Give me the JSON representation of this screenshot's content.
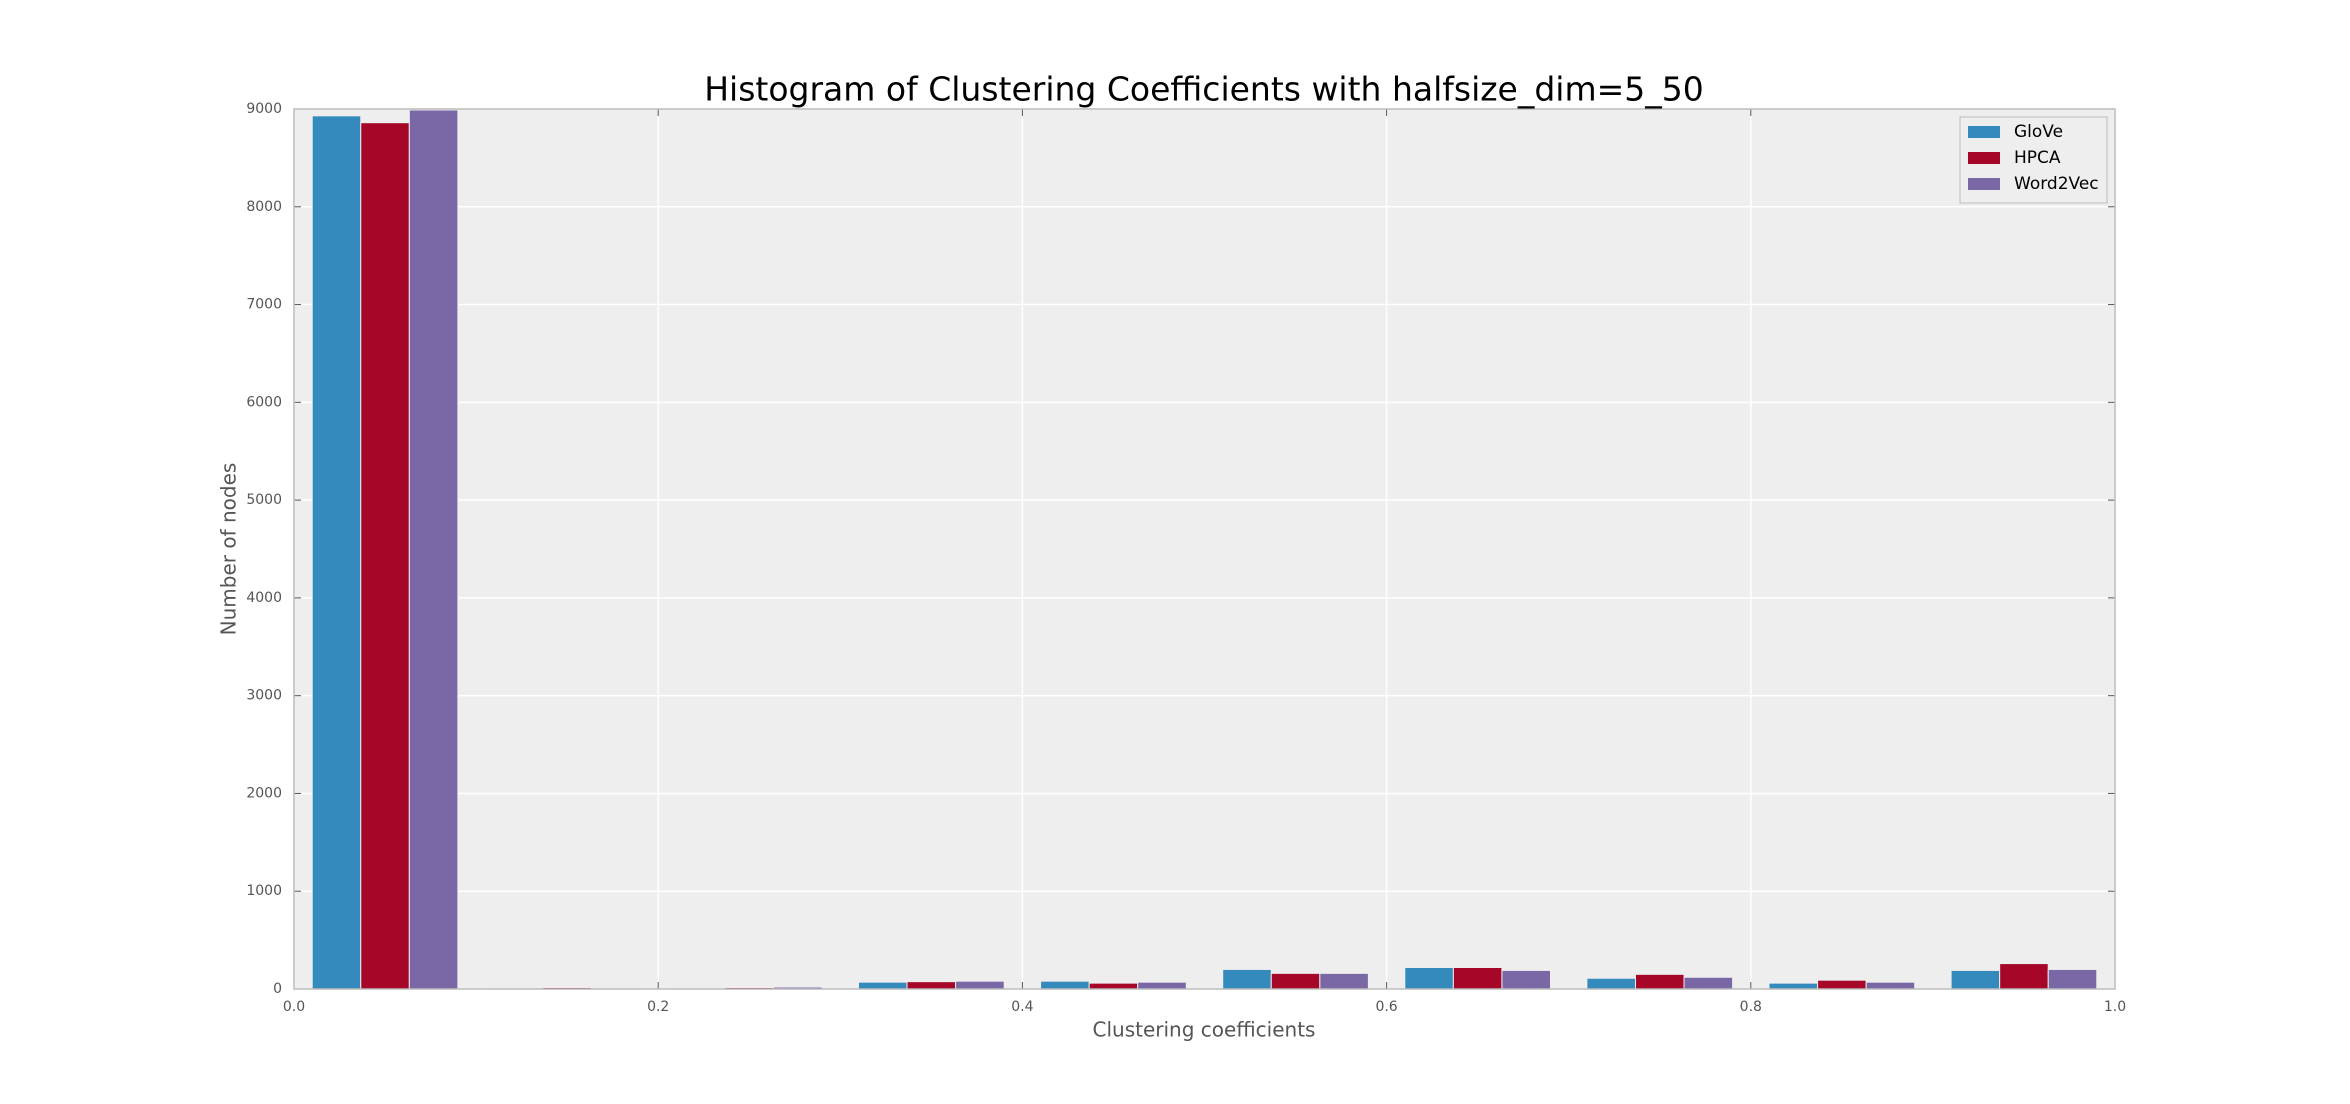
{
  "chart_data": {
    "type": "histogram",
    "title": "Histogram of Clustering Coefficients with halfsize_dim=5_50",
    "xlabel": "Clustering coefficients",
    "ylabel": "Number of nodes",
    "bins": [
      0,
      0.1,
      0.2,
      0.3,
      0.4,
      0.5,
      0.6,
      0.7,
      0.8,
      0.9,
      1.0
    ],
    "series": [
      {
        "name": "GloVe",
        "color": "#348abd",
        "values": [
          8930,
          5,
          10,
          70,
          80,
          200,
          220,
          110,
          60,
          190
        ]
      },
      {
        "name": "HPCA",
        "color": "#a60628",
        "values": [
          8860,
          15,
          15,
          75,
          60,
          160,
          220,
          150,
          90,
          260
        ]
      },
      {
        "name": "Word2Vec",
        "color": "#7a68a6",
        "values": [
          8990,
          10,
          20,
          80,
          70,
          160,
          190,
          120,
          70,
          200
        ]
      }
    ],
    "xlim": [
      0,
      1
    ],
    "ylim": [
      0,
      9000
    ],
    "xticks": [
      {
        "value": 0,
        "label": "0.0"
      },
      0.2,
      0.4,
      0.6,
      0.8,
      {
        "value": 1,
        "label": "1.0"
      }
    ],
    "yticks": [
      0,
      1000,
      2000,
      3000,
      4000,
      5000,
      6000,
      7000,
      8000,
      9000
    ],
    "grid": true,
    "legend": "upper right"
  }
}
